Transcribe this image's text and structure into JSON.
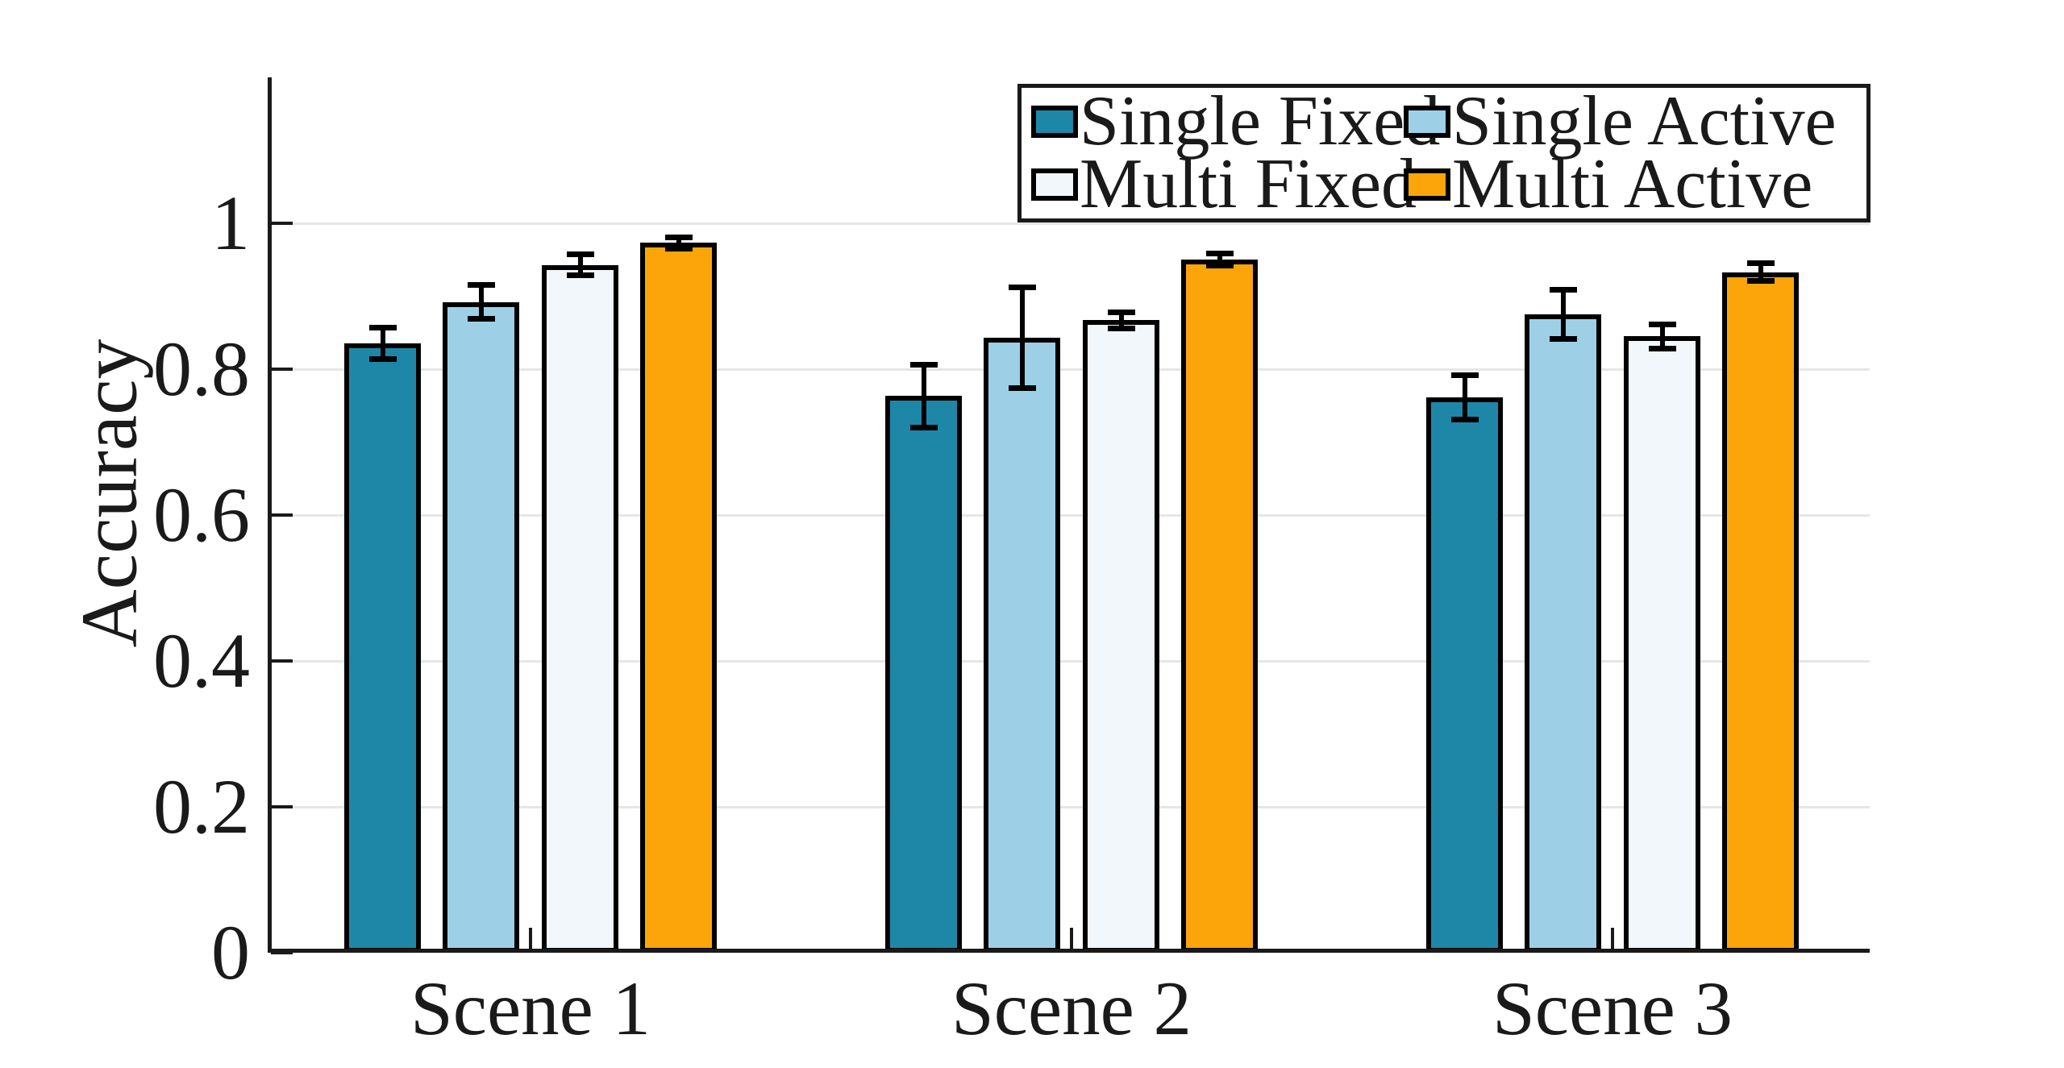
{
  "figure": {
    "background": "#FFFFFF"
  },
  "y_axis": {
    "label": "Accuracy",
    "tick_labels": [
      "0",
      "0.2",
      "0.4",
      "0.6",
      "0.8",
      "1"
    ]
  },
  "x_axis": {
    "categories": [
      "Scene 1",
      "Scene 2",
      "Scene 3"
    ]
  },
  "legend": {
    "position": "top-right",
    "rows": 2,
    "columns": 2,
    "border_color": "#1A1A1A"
  },
  "chart_data": {
    "type": "bar",
    "title": "",
    "xlabel": "",
    "ylabel": "Accuracy",
    "categories": [
      "Scene 1",
      "Scene 2",
      "Scene 3"
    ],
    "series": [
      {
        "name": "Single Fixed",
        "color": "#1E87A7",
        "values": [
          0.835,
          0.763,
          0.761
        ],
        "errors": [
          0.022,
          0.044,
          0.031
        ]
      },
      {
        "name": "Single Active",
        "color": "#9DD0E7",
        "values": [
          0.892,
          0.843,
          0.875
        ],
        "errors": [
          0.024,
          0.07,
          0.034
        ]
      },
      {
        "name": "Multi Fixed",
        "color": "#F1F7FB",
        "values": [
          0.943,
          0.867,
          0.845
        ],
        "errors": [
          0.015,
          0.012,
          0.017
        ]
      },
      {
        "name": "Multi Active",
        "color": "#FCA50A",
        "values": [
          0.973,
          0.95,
          0.933
        ],
        "errors": [
          0.008,
          0.009,
          0.013
        ]
      }
    ],
    "ylim": [
      0,
      1.2
    ],
    "yticks": [
      0,
      0.2,
      0.4,
      0.6,
      0.8,
      1
    ],
    "grid": true,
    "grid_color": "#E6E6E6",
    "axis_color": "#1A1A1A",
    "bar_edge_color": "#000000",
    "error_bar_color": "#000000",
    "legend_position": "top-right"
  }
}
